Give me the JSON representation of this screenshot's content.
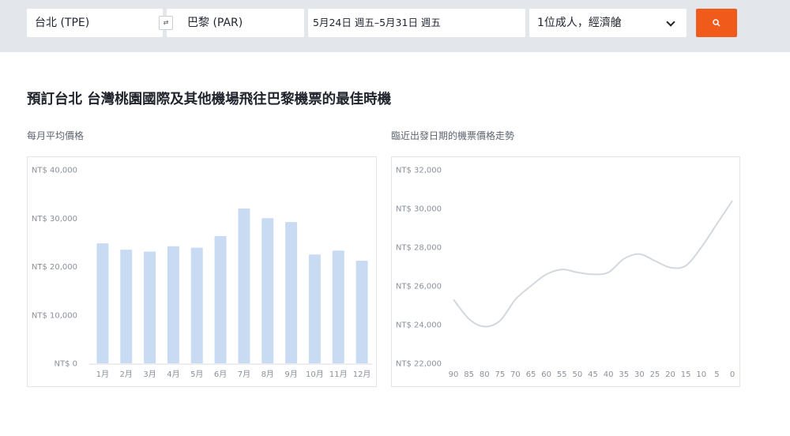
{
  "search": {
    "origin": "台北 (TPE)",
    "swap_icon": "⇄",
    "destination": "巴黎 (PAR)",
    "dates": "5月24日 週五–5月31日 週五",
    "passengers": "1位成人，經濟艙",
    "accent_color": "#f05a1a"
  },
  "page": {
    "title": "預訂台北 台灣桃園國際及其他機場飛往巴黎機票的最佳時機"
  },
  "monthly": {
    "label": "每月平均價格"
  },
  "trend": {
    "label": "臨近出發日期的機票價格走勢"
  },
  "chart_data": [
    {
      "type": "bar",
      "categories": [
        "1月",
        "2月",
        "3月",
        "4月",
        "5月",
        "6月",
        "7月",
        "8月",
        "9月",
        "10月",
        "11月",
        "12月"
      ],
      "values": [
        24800,
        23500,
        23100,
        24200,
        23900,
        26300,
        32000,
        30000,
        29200,
        22500,
        23300,
        21200
      ],
      "ylim": [
        0,
        40000
      ],
      "yticks": [
        0,
        10000,
        20000,
        30000,
        40000
      ],
      "ytick_labels": [
        "NT$ 0",
        "NT$ 10,000",
        "NT$ 20,000",
        "NT$ 30,000",
        "NT$ 40,000"
      ],
      "color": "#c9daf3",
      "grid": false
    },
    {
      "type": "line",
      "x": [
        90,
        85,
        80,
        75,
        70,
        65,
        60,
        55,
        50,
        45,
        40,
        35,
        30,
        25,
        20,
        15,
        10,
        5,
        0
      ],
      "values": [
        25300,
        24300,
        23900,
        24200,
        25300,
        26000,
        26600,
        26850,
        26700,
        26600,
        26700,
        27400,
        27650,
        27300,
        26950,
        27050,
        28000,
        29200,
        30400
      ],
      "xtick_labels": [
        "90",
        "85",
        "80",
        "75",
        "70",
        "65",
        "60",
        "55",
        "50",
        "45",
        "40",
        "35",
        "30",
        "25",
        "20",
        "15",
        "10",
        "5",
        "0"
      ],
      "ylim": [
        22000,
        32000
      ],
      "yticks": [
        22000,
        24000,
        26000,
        28000,
        30000,
        32000
      ],
      "ytick_labels": [
        "NT$ 22,000",
        "NT$ 24,000",
        "NT$ 26,000",
        "NT$ 28,000",
        "NT$ 30,000",
        "NT$ 32,000"
      ],
      "color": "#d3d8de",
      "grid": false
    }
  ]
}
